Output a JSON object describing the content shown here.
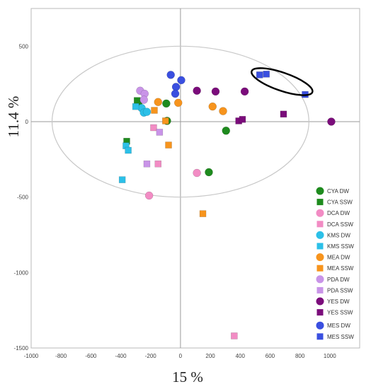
{
  "chart_data": {
    "type": "scatter",
    "xlabel": "15 %",
    "ylabel": "11.4 %",
    "xlim": [
      -1000,
      1200
    ],
    "ylim": [
      -1500,
      750
    ],
    "xticks": [
      "-1000",
      "-800",
      "-600",
      "-400",
      "-200",
      "0",
      "200",
      "400",
      "600",
      "800",
      "1000"
    ],
    "yticks": [
      "-1500",
      "-1000",
      "-500",
      "0",
      "500"
    ],
    "ellipse": {
      "cx": 0,
      "cy": 0,
      "rx": 860,
      "ry": 500
    },
    "highlight_ellipse": {
      "cx": 680,
      "cy": 265,
      "rx": 215,
      "ry": 60,
      "angle_deg": 19
    },
    "series": [
      {
        "name": "CYA DW",
        "shape": "circle",
        "color": "#1e8b1e",
        "points": [
          [
            -280,
            130
          ],
          [
            -95,
            120
          ],
          [
            -90,
            5
          ],
          [
            305,
            -60
          ],
          [
            190,
            -335
          ]
        ]
      },
      {
        "name": "CYA SSW",
        "shape": "square",
        "color": "#1e8b1e",
        "points": [
          [
            -290,
            140
          ],
          [
            -360,
            -130
          ]
        ]
      },
      {
        "name": "DCA DW",
        "shape": "circle",
        "color": "#f28cc4",
        "points": [
          [
            110,
            -340
          ],
          [
            -210,
            -490
          ]
        ]
      },
      {
        "name": "DCA SSW",
        "shape": "square",
        "color": "#f28cc4",
        "points": [
          [
            -180,
            -40
          ],
          [
            -150,
            -280
          ],
          [
            360,
            -1420
          ]
        ]
      },
      {
        "name": "KMS DW",
        "shape": "circle",
        "color": "#2cc0e8",
        "points": [
          [
            -260,
            90
          ],
          [
            -245,
            60
          ],
          [
            -225,
            65
          ]
        ]
      },
      {
        "name": "KMS SSW",
        "shape": "square",
        "color": "#2cc0e8",
        "points": [
          [
            -300,
            100
          ],
          [
            -365,
            -160
          ],
          [
            -350,
            -190
          ],
          [
            -390,
            -385
          ]
        ]
      },
      {
        "name": "MEA DW",
        "shape": "circle",
        "color": "#f7941d",
        "points": [
          [
            -150,
            130
          ],
          [
            -15,
            125
          ],
          [
            215,
            100
          ],
          [
            285,
            70
          ]
        ]
      },
      {
        "name": "MEA SSW",
        "shape": "square",
        "color": "#f7941d",
        "points": [
          [
            -175,
            75
          ],
          [
            -100,
            5
          ],
          [
            -80,
            -155
          ],
          [
            150,
            -610
          ]
        ]
      },
      {
        "name": "PDA DW",
        "shape": "circle",
        "color": "#c994e8",
        "points": [
          [
            -270,
            205
          ],
          [
            -240,
            185
          ],
          [
            -245,
            145
          ]
        ]
      },
      {
        "name": "PDA SSW",
        "shape": "square",
        "color": "#c994e8",
        "points": [
          [
            -140,
            -70
          ],
          [
            -225,
            -280
          ]
        ]
      },
      {
        "name": "YES DW",
        "shape": "circle",
        "color": "#7b0c7b",
        "points": [
          [
            110,
            205
          ],
          [
            235,
            200
          ],
          [
            430,
            200
          ],
          [
            1010,
            0
          ]
        ]
      },
      {
        "name": "YES SSW",
        "shape": "square",
        "color": "#7b0c7b",
        "points": [
          [
            390,
            5
          ],
          [
            415,
            15
          ],
          [
            690,
            50
          ]
        ]
      },
      {
        "name": "MES DW",
        "shape": "circle",
        "color": "#3a4fe0",
        "points": [
          [
            -65,
            310
          ],
          [
            5,
            275
          ],
          [
            -30,
            230
          ],
          [
            -35,
            185
          ]
        ]
      },
      {
        "name": "MES SSW",
        "shape": "square",
        "color": "#3a4fe0",
        "points": [
          [
            530,
            310
          ],
          [
            575,
            315
          ],
          [
            835,
            180
          ]
        ]
      }
    ]
  }
}
